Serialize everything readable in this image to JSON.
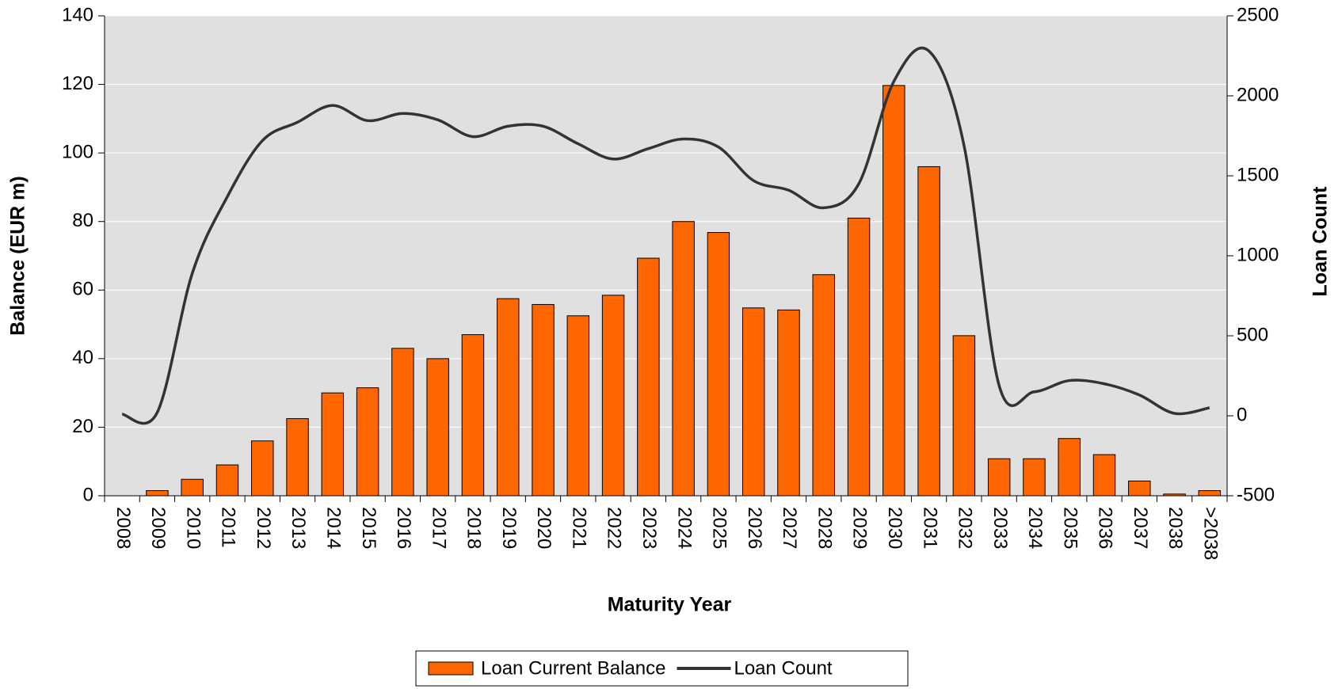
{
  "chart_data": {
    "type": "bar_line",
    "categories": [
      "2008",
      "2009",
      "2010",
      "2011",
      "2012",
      "2013",
      "2014",
      "2015",
      "2016",
      "2017",
      "2018",
      "2019",
      "2020",
      "2021",
      "2022",
      "2023",
      "2024",
      "2025",
      "2026",
      "2027",
      "2028",
      "2029",
      "2030",
      "2031",
      "2032",
      "2033",
      "2034",
      "2035",
      "2036",
      "2037",
      "2038",
      ">2038"
    ],
    "series": [
      {
        "name": "Loan Current Balance",
        "color": "#ff6600",
        "type": "bar",
        "values": [
          0,
          1.5,
          4.8,
          9,
          16,
          22.5,
          30,
          31.5,
          43,
          40,
          47,
          57.5,
          55.8,
          52.5,
          58.5,
          69.3,
          80,
          76.8,
          54.8,
          54.2,
          64.5,
          81,
          119.7,
          96,
          46.7,
          10.8,
          10.8,
          16.7,
          12,
          4.3,
          0.5,
          1.5
        ]
      },
      {
        "name": "Loan Count",
        "color": "#333333",
        "type": "line",
        "axis": "y2",
        "values": [
          10,
          20,
          890,
          1370,
          1720,
          1835,
          1940,
          1845,
          1890,
          1850,
          1745,
          1810,
          1810,
          1700,
          1605,
          1670,
          1730,
          1680,
          1470,
          1410,
          1300,
          1450,
          2090,
          2280,
          1690,
          190,
          150,
          220,
          200,
          130,
          15,
          50
        ]
      }
    ],
    "xlabel": "Maturity Year",
    "ylabel": "Balance (EUR m)",
    "y2label": "Loan Count",
    "ylim": [
      0,
      140
    ],
    "yticks": [
      0,
      20,
      40,
      60,
      80,
      100,
      120,
      140
    ],
    "y2lim": [
      -500,
      2500
    ],
    "y2ticks": [
      -500,
      0,
      500,
      1000,
      1500,
      2000,
      2500
    ],
    "grid": true,
    "legend": "bottom"
  }
}
